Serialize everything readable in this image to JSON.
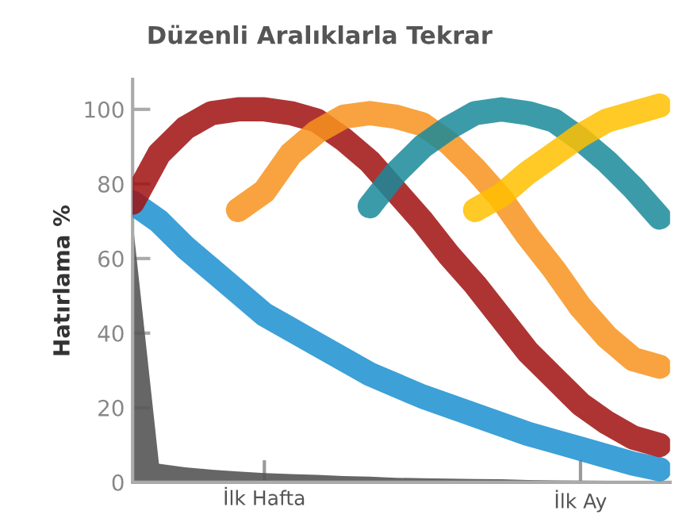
{
  "chart_data": {
    "type": "line",
    "title": "Düzenli Aralıklarla Tekrar",
    "ylabel": "Hatırlama %",
    "categories": [
      null,
      null,
      null,
      null,
      null,
      "İlk Hafta",
      null,
      null,
      null,
      null,
      null,
      null,
      null,
      null,
      null,
      null,
      null,
      "İlk Ay",
      null,
      null,
      null
    ],
    "ylim": [
      0,
      108
    ],
    "yticks": [
      0,
      20,
      40,
      60,
      80,
      100
    ],
    "grid": false,
    "marker": "none",
    "line_style": "solid",
    "series": [
      {
        "type": "area",
        "color": "#555555",
        "values": [
          70,
          5,
          4,
          3.4,
          2.9,
          2.5,
          2.2,
          2,
          1.7,
          1.5,
          1.2,
          1.1,
          1,
          0.9,
          0.8,
          0.6,
          0.5,
          0.45,
          0.4,
          0.35,
          0.3
        ]
      },
      {
        "color": "#1b8fd0",
        "values": [
          75,
          70,
          63,
          57,
          51,
          45,
          41,
          37,
          33,
          29,
          26,
          23,
          20.5,
          18,
          15.5,
          13,
          11,
          9,
          7,
          5,
          3.5
        ]
      },
      {
        "color": "#a01010",
        "values": [
          75,
          88,
          95,
          99,
          100,
          100,
          99,
          97,
          92,
          86,
          78,
          70,
          61,
          53,
          44,
          35,
          28,
          21,
          16,
          12,
          10
        ]
      },
      {
        "color": "#f7931e",
        "values": [
          null,
          null,
          null,
          null,
          73,
          78,
          88,
          94,
          98,
          99,
          98,
          96,
          91,
          84,
          76,
          66,
          57,
          47,
          39,
          33,
          31
        ]
      },
      {
        "color": "#1a8a9a",
        "values": [
          null,
          null,
          null,
          null,
          null,
          null,
          null,
          null,
          null,
          74,
          83,
          90,
          95,
          99,
          100,
          99,
          97,
          92,
          86,
          79,
          71
        ]
      },
      {
        "color": "#ffc000",
        "values": [
          null,
          null,
          null,
          null,
          null,
          null,
          null,
          null,
          null,
          null,
          null,
          null,
          null,
          73,
          77,
          83,
          88,
          93,
          97,
          99,
          101
        ]
      }
    ]
  }
}
